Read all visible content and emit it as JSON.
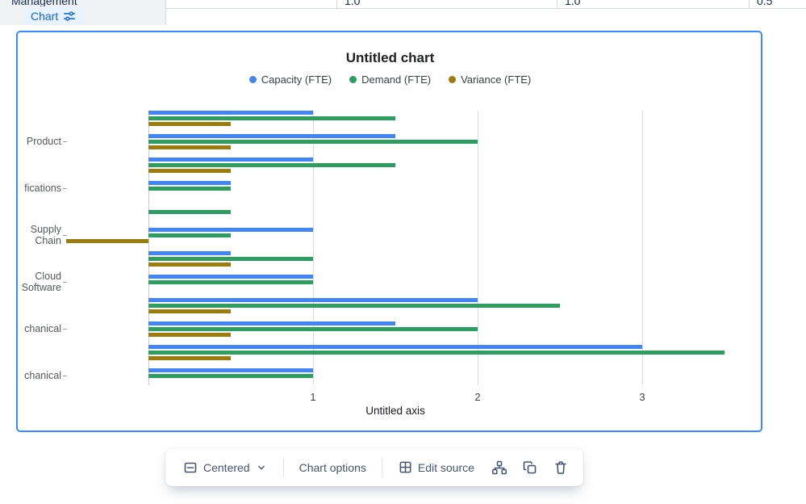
{
  "table_strip": {
    "row_header": "Management",
    "values": [
      "1.0",
      "1.0",
      "0.5"
    ]
  },
  "chart_chip": {
    "label": "Chart"
  },
  "chart_data": {
    "type": "bar",
    "orientation": "horizontal",
    "title": "Untitled chart",
    "axis_title": "Untitled axis",
    "x_ticks": [
      1,
      2,
      3
    ],
    "x_range": [
      -0.5,
      3.75
    ],
    "grid": true,
    "legend_position": "top",
    "categories": [
      "",
      "Product",
      "",
      "fications",
      "",
      "Supply Chain",
      "",
      "Cloud Software",
      "",
      "chanical",
      "",
      "chanical"
    ],
    "series": [
      {
        "name": "Capacity (FTE)",
        "color": "#4285f4",
        "values": [
          1,
          1.5,
          1,
          0.5,
          0,
          1,
          0.5,
          1,
          2,
          1.5,
          3,
          1
        ]
      },
      {
        "name": "Demand (FTE)",
        "color": "#2d9e5f",
        "values": [
          1.5,
          2,
          1.5,
          0.5,
          0.5,
          0.5,
          1,
          1,
          2.5,
          2,
          3.5,
          1
        ]
      },
      {
        "name": "Variance (FTE)",
        "color": "#9b7c0c",
        "values": [
          0.5,
          0.5,
          0.5,
          0,
          0,
          -0.5,
          0.5,
          0,
          0.5,
          0.5,
          0.5,
          0
        ]
      }
    ]
  },
  "toolbar": {
    "alignment_label": "Centered",
    "chart_options_label": "Chart options",
    "edit_source_label": "Edit source"
  },
  "colors": {
    "selection_border": "#388bff",
    "chip_text": "#0c66e4",
    "chip_bg": "#e9f2ff",
    "toolbar_icon": "#44546f"
  }
}
